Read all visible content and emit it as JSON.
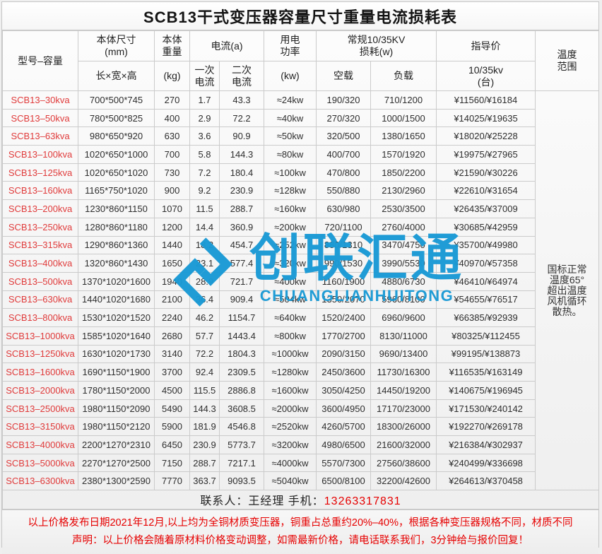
{
  "title": "SCB13干式变压器容量尺寸重量电流损耗表",
  "header": {
    "model": "型号–容量",
    "size": {
      "line1": "本体尺寸\n(mm)",
      "line2": "长×宽×高"
    },
    "weight": {
      "line1": "本体\n重量",
      "line2": "(kg)"
    },
    "current": {
      "group": "电流(a)",
      "primary": "一次\n电流",
      "secondary": "二次\n电流"
    },
    "power": {
      "line1": "用电\n功率",
      "line2": "(kw)"
    },
    "loss": {
      "group": "常规10/35KV\n损耗(w)",
      "noload": "空载",
      "load": "负载"
    },
    "price": {
      "line1": "指导价",
      "line2": "10/35kv\n(台)"
    },
    "temp": "温度\n范围"
  },
  "temperature_note": "国标正常\n温度65°\n超出温度\n风机循环\n散热。",
  "rows": [
    {
      "model": "SCB13–30kva",
      "size": "700*500*745",
      "weight": "270",
      "i1": "1.7",
      "i2": "43.3",
      "power": "≈24kw",
      "noload": "190/320",
      "load": "710/1200",
      "price": "¥11560/¥16184"
    },
    {
      "model": "SCB13–50kva",
      "size": "780*500*825",
      "weight": "400",
      "i1": "2.9",
      "i2": "72.2",
      "power": "≈40kw",
      "noload": "270/320",
      "load": "1000/1500",
      "price": "¥14025/¥19635"
    },
    {
      "model": "SCB13–63kva",
      "size": "980*650*920",
      "weight": "630",
      "i1": "3.6",
      "i2": "90.9",
      "power": "≈50kw",
      "noload": "320/500",
      "load": "1380/1650",
      "price": "¥18020/¥25228"
    },
    {
      "model": "SCB13–100kva",
      "size": "1020*650*1000",
      "weight": "700",
      "i1": "5.8",
      "i2": "144.3",
      "power": "≈80kw",
      "noload": "400/700",
      "load": "1570/1920",
      "price": "¥19975/¥27965"
    },
    {
      "model": "SCB13–125kva",
      "size": "1020*650*1020",
      "weight": "730",
      "i1": "7.2",
      "i2": "180.4",
      "power": "≈100kw",
      "noload": "470/800",
      "load": "1850/2200",
      "price": "¥21590/¥30226"
    },
    {
      "model": "SCB13–160kva",
      "size": "1165*750*1020",
      "weight": "900",
      "i1": "9.2",
      "i2": "230.9",
      "power": "≈128kw",
      "noload": "550/880",
      "load": "2130/2960",
      "price": "¥22610/¥31654"
    },
    {
      "model": "SCB13–200kva",
      "size": "1230*860*1150",
      "weight": "1070",
      "i1": "11.5",
      "i2": "288.7",
      "power": "≈160kw",
      "noload": "630/980",
      "load": "2530/3500",
      "price": "¥26435/¥37009"
    },
    {
      "model": "SCB13–250kva",
      "size": "1280*860*1180",
      "weight": "1200",
      "i1": "14.4",
      "i2": "360.9",
      "power": "≈200kw",
      "noload": "720/1100",
      "load": "2760/4000",
      "price": "¥30685/¥42959"
    },
    {
      "model": "SCB13–315kva",
      "size": "1290*860*1360",
      "weight": "1440",
      "i1": "18.2",
      "i2": "454.7",
      "power": "≈252kw",
      "noload": "880/1310",
      "load": "3470/4750",
      "price": "¥35700/¥49980"
    },
    {
      "model": "SCB13–400kva",
      "size": "1320*860*1430",
      "weight": "1650",
      "i1": "23.1",
      "i2": "577.4",
      "power": "≈320kw",
      "noload": "990/1530",
      "load": "3990/5530",
      "price": "¥40970/¥57358"
    },
    {
      "model": "SCB13–500kva",
      "size": "1370*1020*1600",
      "weight": "1940",
      "i1": "28.9",
      "i2": "721.7",
      "power": "≈400kw",
      "noload": "1160/1900",
      "load": "4880/6730",
      "price": "¥46410/¥64974"
    },
    {
      "model": "SCB13–630kva",
      "size": "1440*1020*1680",
      "weight": "2100",
      "i1": "36.4",
      "i2": "909.4",
      "power": "≈504kw",
      "noload": "1350/2070",
      "load": "5960/8100",
      "price": "¥54655/¥76517"
    },
    {
      "model": "SCB13–800kva",
      "size": "1530*1020*1520",
      "weight": "2240",
      "i1": "46.2",
      "i2": "1154.7",
      "power": "≈640kw",
      "noload": "1520/2400",
      "load": "6960/9600",
      "price": "¥66385/¥92939"
    },
    {
      "model": "SCB13–1000kva",
      "size": "1585*1020*1640",
      "weight": "2680",
      "i1": "57.7",
      "i2": "1443.4",
      "power": "≈800kw",
      "noload": "1770/2700",
      "load": "8130/11000",
      "price": "¥80325/¥112455"
    },
    {
      "model": "SCB13–1250kva",
      "size": "1630*1020*1730",
      "weight": "3140",
      "i1": "72.2",
      "i2": "1804.3",
      "power": "≈1000kw",
      "noload": "2090/3150",
      "load": "9690/13400",
      "price": "¥99195/¥138873"
    },
    {
      "model": "SCB13–1600kva",
      "size": "1690*1150*1900",
      "weight": "3700",
      "i1": "92.4",
      "i2": "2309.5",
      "power": "≈1280kw",
      "noload": "2450/3600",
      "load": "11730/16300",
      "price": "¥116535/¥163149"
    },
    {
      "model": "SCB13–2000kva",
      "size": "1780*1150*2000",
      "weight": "4500",
      "i1": "115.5",
      "i2": "2886.8",
      "power": "≈1600kw",
      "noload": "3050/4250",
      "load": "14450/19200",
      "price": "¥140675/¥196945"
    },
    {
      "model": "SCB13–2500kva",
      "size": "1980*1150*2090",
      "weight": "5490",
      "i1": "144.3",
      "i2": "3608.5",
      "power": "≈2000kw",
      "noload": "3600/4950",
      "load": "17170/23000",
      "price": "¥171530/¥240142"
    },
    {
      "model": "SCB13–3150kva",
      "size": "1980*1150*2120",
      "weight": "5900",
      "i1": "181.9",
      "i2": "4546.8",
      "power": "≈2520kw",
      "noload": "4260/5700",
      "load": "18300/26000",
      "price": "¥192270/¥269178"
    },
    {
      "model": "SCB13–4000kva",
      "size": "2200*1270*2310",
      "weight": "6450",
      "i1": "230.9",
      "i2": "5773.7",
      "power": "≈3200kw",
      "noload": "4980/6500",
      "load": "21600/32000",
      "price": "¥216384/¥302937"
    },
    {
      "model": "SCB13–5000kva",
      "size": "2270*1270*2500",
      "weight": "7150",
      "i1": "288.7",
      "i2": "7217.1",
      "power": "≈4000kw",
      "noload": "5570/7300",
      "load": "27560/38600",
      "price": "¥240499/¥336698"
    },
    {
      "model": "SCB13–6300kva",
      "size": "2380*1300*2590",
      "weight": "7770",
      "i1": "363.7",
      "i2": "9093.5",
      "power": "≈5040kw",
      "noload": "6500/8100",
      "load": "32200/42600",
      "price": "¥264613/¥370458"
    }
  ],
  "contact": {
    "label": "联系人：王经理  手机：",
    "phone": "13263317831"
  },
  "footer": {
    "line1": "以上价格发布日期2021年12月,以上均为全铜材质变压器，铜重占总重约20%–40%，根据各种变压器规格不同，材质不同",
    "line2": "声明：以上价格会随着原材料价格变动调整，如需最新价格，请电话联系我们，3分钟给与报价回复！"
  },
  "watermark": {
    "text": "创联汇通",
    "subtext": "CHUANGLIANHUITONG",
    "color": "#1a9ad5"
  }
}
